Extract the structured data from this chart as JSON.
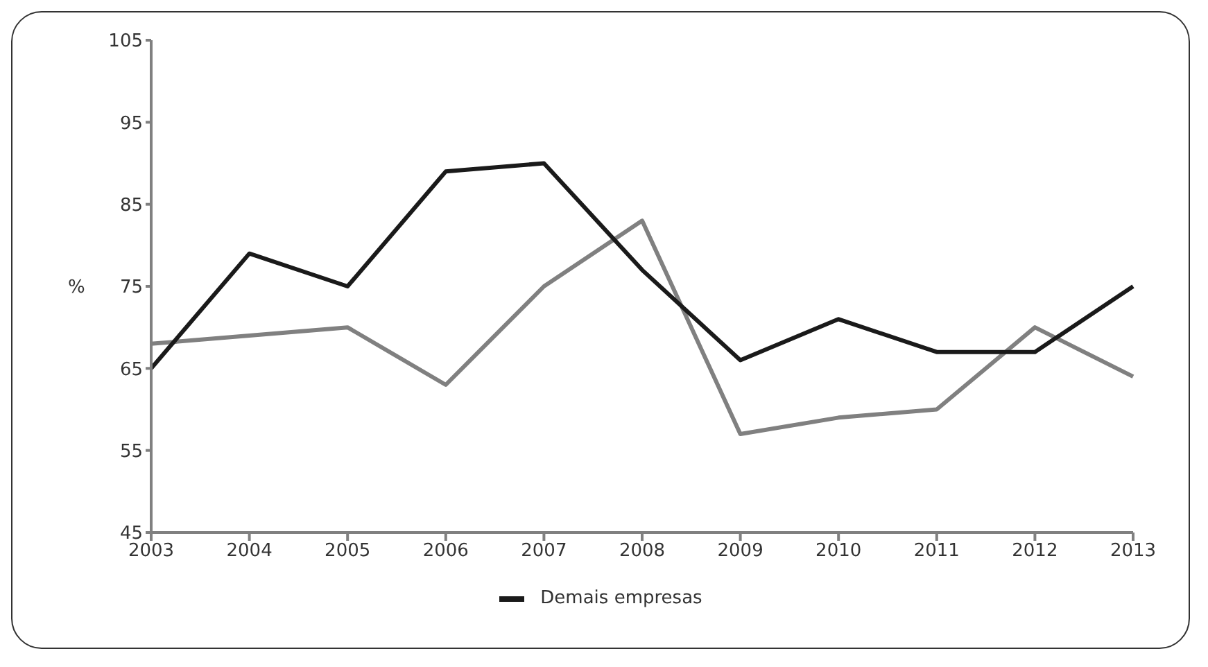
{
  "chart_data": {
    "type": "line",
    "ylabel": "%",
    "categories": [
      "2003",
      "2004",
      "2005",
      "2006",
      "2007",
      "2008",
      "2009",
      "2010",
      "2011",
      "2012",
      "2013"
    ],
    "series": [
      {
        "color": "#808080",
        "values": [
          68,
          69,
          70,
          63,
          75,
          83,
          57,
          59,
          60,
          70,
          64
        ]
      },
      {
        "name": "Demais empresas",
        "color": "#1a1a1a",
        "values": [
          65,
          79,
          75,
          89,
          90,
          77,
          66,
          71,
          67,
          67,
          75
        ]
      }
    ],
    "ylim": [
      45,
      105
    ],
    "yticks": [
      45,
      55,
      65,
      75,
      85,
      95,
      105
    ],
    "grid": false,
    "legend": "bottom",
    "marker": "none",
    "line_style": "solid"
  }
}
